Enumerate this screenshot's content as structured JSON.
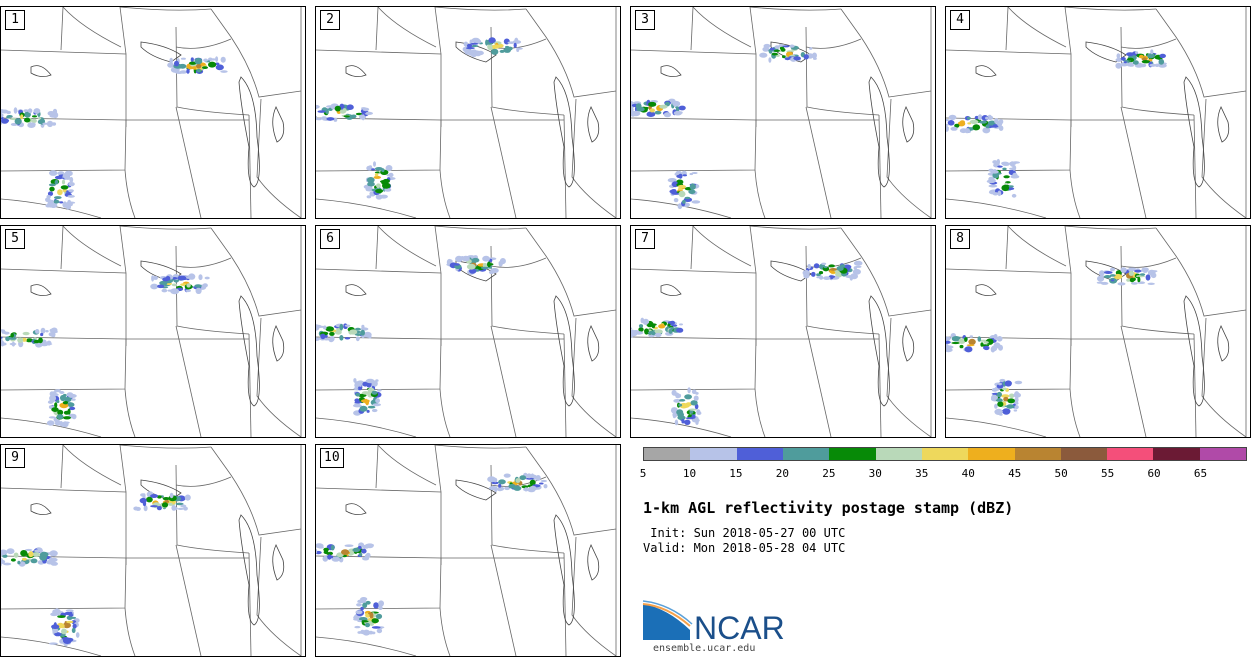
{
  "panels": [
    {
      "label": "1"
    },
    {
      "label": "2"
    },
    {
      "label": "3"
    },
    {
      "label": "4"
    },
    {
      "label": "5"
    },
    {
      "label": "6"
    },
    {
      "label": "7"
    },
    {
      "label": "8"
    },
    {
      "label": "9"
    },
    {
      "label": "10"
    }
  ],
  "colorbar": {
    "colors": [
      "#a6a6a6",
      "#b7c3e8",
      "#4f5fd8",
      "#4f9c9c",
      "#078a07",
      "#b9d9b9",
      "#eed85c",
      "#eeaf1e",
      "#b98431",
      "#8b5a3c",
      "#f44f7a",
      "#6b1a34",
      "#b04aa8"
    ],
    "ticks": [
      "5",
      "10",
      "15",
      "20",
      "25",
      "30",
      "35",
      "40",
      "45",
      "50",
      "55",
      "60",
      "65"
    ]
  },
  "title": "1-km AGL reflectivity postage stamp (dBZ)",
  "init_line": " Init: Sun 2018-05-27 00 UTC",
  "valid_line": "Valid: Mon 2018-05-28 04 UTC",
  "logo": {
    "text": "NCAR",
    "url": "ensemble.ucar.edu"
  }
}
